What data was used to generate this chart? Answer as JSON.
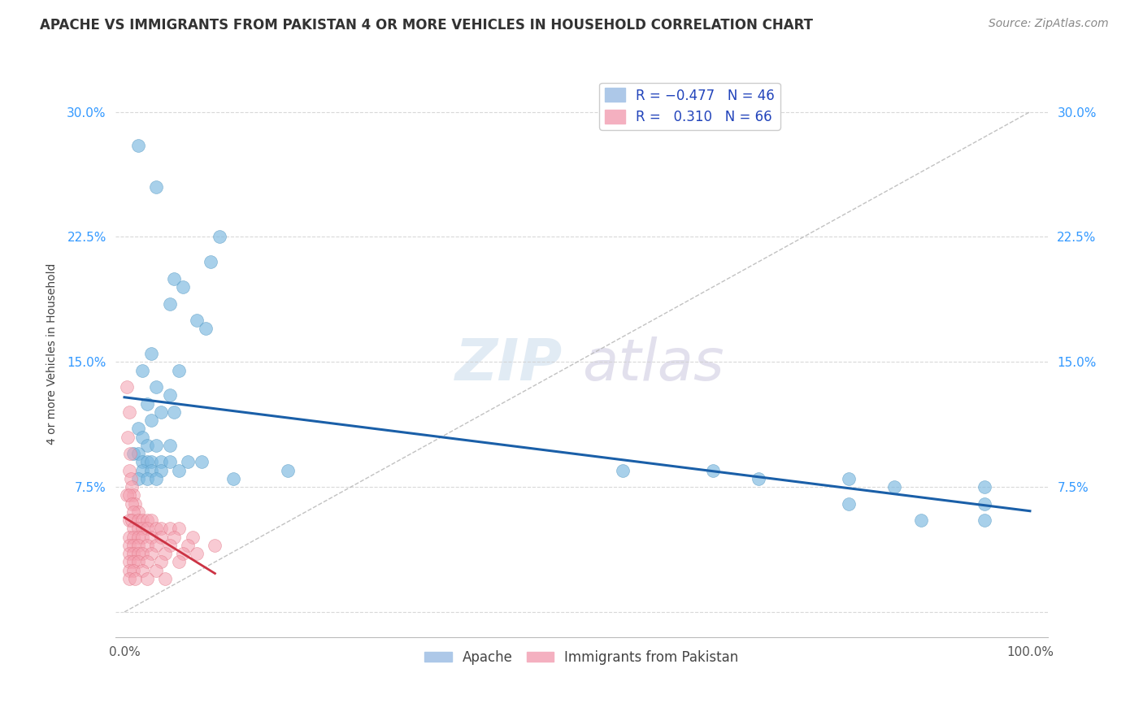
{
  "title": "APACHE VS IMMIGRANTS FROM PAKISTAN 4 OR MORE VEHICLES IN HOUSEHOLD CORRELATION CHART",
  "source": "Source: ZipAtlas.com",
  "ylabel": "4 or more Vehicles in Household",
  "xlim": [
    -1.0,
    102.0
  ],
  "ylim": [
    -1.5,
    32.5
  ],
  "yticks": [
    0.0,
    7.5,
    15.0,
    22.5,
    30.0
  ],
  "ytick_labels": [
    "",
    "7.5%",
    "15.0%",
    "22.5%",
    "30.0%"
  ],
  "xticks": [
    0.0,
    100.0
  ],
  "xtick_labels": [
    "0.0%",
    "100.0%"
  ],
  "apache_color": "#7ab8e0",
  "apache_edge_color": "#5a9cc5",
  "pakistan_color": "#f4a0b0",
  "pakistan_edge_color": "#e07080",
  "apache_line_color": "#1a5fa8",
  "pakistan_line_color": "#cc3344",
  "apache_scatter": [
    [
      1.5,
      28.0
    ],
    [
      3.5,
      25.5
    ],
    [
      9.5,
      21.0
    ],
    [
      5.0,
      18.5
    ],
    [
      10.5,
      22.5
    ],
    [
      8.0,
      17.5
    ],
    [
      9.0,
      17.0
    ],
    [
      5.5,
      20.0
    ],
    [
      6.5,
      19.5
    ],
    [
      3.0,
      15.5
    ],
    [
      2.0,
      14.5
    ],
    [
      6.0,
      14.5
    ],
    [
      3.5,
      13.5
    ],
    [
      5.0,
      13.0
    ],
    [
      2.5,
      12.5
    ],
    [
      4.0,
      12.0
    ],
    [
      5.5,
      12.0
    ],
    [
      3.0,
      11.5
    ],
    [
      1.5,
      11.0
    ],
    [
      2.0,
      10.5
    ],
    [
      2.5,
      10.0
    ],
    [
      3.5,
      10.0
    ],
    [
      5.0,
      10.0
    ],
    [
      1.0,
      9.5
    ],
    [
      1.5,
      9.5
    ],
    [
      2.0,
      9.0
    ],
    [
      2.5,
      9.0
    ],
    [
      3.0,
      9.0
    ],
    [
      4.0,
      9.0
    ],
    [
      5.0,
      9.0
    ],
    [
      7.0,
      9.0
    ],
    [
      8.5,
      9.0
    ],
    [
      2.0,
      8.5
    ],
    [
      3.0,
      8.5
    ],
    [
      4.0,
      8.5
    ],
    [
      6.0,
      8.5
    ],
    [
      1.5,
      8.0
    ],
    [
      2.5,
      8.0
    ],
    [
      3.5,
      8.0
    ],
    [
      12.0,
      8.0
    ],
    [
      18.0,
      8.5
    ],
    [
      55.0,
      8.5
    ],
    [
      65.0,
      8.5
    ],
    [
      70.0,
      8.0
    ],
    [
      80.0,
      8.0
    ],
    [
      85.0,
      7.5
    ],
    [
      95.0,
      7.5
    ],
    [
      80.0,
      6.5
    ],
    [
      95.0,
      6.5
    ],
    [
      88.0,
      5.5
    ],
    [
      95.0,
      5.5
    ]
  ],
  "pakistan_scatter": [
    [
      0.3,
      13.5
    ],
    [
      0.5,
      12.0
    ],
    [
      0.4,
      10.5
    ],
    [
      0.6,
      9.5
    ],
    [
      0.5,
      8.5
    ],
    [
      0.7,
      8.0
    ],
    [
      0.8,
      7.5
    ],
    [
      1.0,
      7.0
    ],
    [
      0.3,
      7.0
    ],
    [
      0.5,
      7.0
    ],
    [
      1.2,
      6.5
    ],
    [
      0.8,
      6.5
    ],
    [
      1.5,
      6.0
    ],
    [
      1.0,
      6.0
    ],
    [
      0.5,
      5.5
    ],
    [
      0.8,
      5.5
    ],
    [
      1.5,
      5.5
    ],
    [
      2.0,
      5.5
    ],
    [
      2.5,
      5.5
    ],
    [
      3.0,
      5.5
    ],
    [
      1.0,
      5.0
    ],
    [
      1.5,
      5.0
    ],
    [
      2.0,
      5.0
    ],
    [
      2.5,
      5.0
    ],
    [
      3.5,
      5.0
    ],
    [
      4.0,
      5.0
    ],
    [
      5.0,
      5.0
    ],
    [
      6.0,
      5.0
    ],
    [
      0.5,
      4.5
    ],
    [
      1.0,
      4.5
    ],
    [
      1.5,
      4.5
    ],
    [
      2.0,
      4.5
    ],
    [
      3.0,
      4.5
    ],
    [
      4.0,
      4.5
    ],
    [
      5.5,
      4.5
    ],
    [
      7.5,
      4.5
    ],
    [
      0.5,
      4.0
    ],
    [
      1.0,
      4.0
    ],
    [
      1.5,
      4.0
    ],
    [
      2.5,
      4.0
    ],
    [
      3.5,
      4.0
    ],
    [
      5.0,
      4.0
    ],
    [
      7.0,
      4.0
    ],
    [
      10.0,
      4.0
    ],
    [
      0.5,
      3.5
    ],
    [
      1.0,
      3.5
    ],
    [
      1.5,
      3.5
    ],
    [
      2.0,
      3.5
    ],
    [
      3.0,
      3.5
    ],
    [
      4.5,
      3.5
    ],
    [
      6.5,
      3.5
    ],
    [
      8.0,
      3.5
    ],
    [
      0.5,
      3.0
    ],
    [
      1.0,
      3.0
    ],
    [
      1.5,
      3.0
    ],
    [
      2.5,
      3.0
    ],
    [
      4.0,
      3.0
    ],
    [
      6.0,
      3.0
    ],
    [
      0.5,
      2.5
    ],
    [
      1.0,
      2.5
    ],
    [
      2.0,
      2.5
    ],
    [
      3.5,
      2.5
    ],
    [
      0.5,
      2.0
    ],
    [
      1.2,
      2.0
    ],
    [
      2.5,
      2.0
    ],
    [
      4.5,
      2.0
    ]
  ],
  "watermark_zip": "ZIP",
  "watermark_atlas": "atlas",
  "watermark_color_zip": "#c8d8e8",
  "watermark_color_atlas": "#c8c8d8",
  "background_color": "#ffffff",
  "grid_color": "#d0d0d0",
  "title_fontsize": 12,
  "axis_label_fontsize": 10,
  "tick_fontsize": 11,
  "legend_fontsize": 12,
  "source_fontsize": 10
}
